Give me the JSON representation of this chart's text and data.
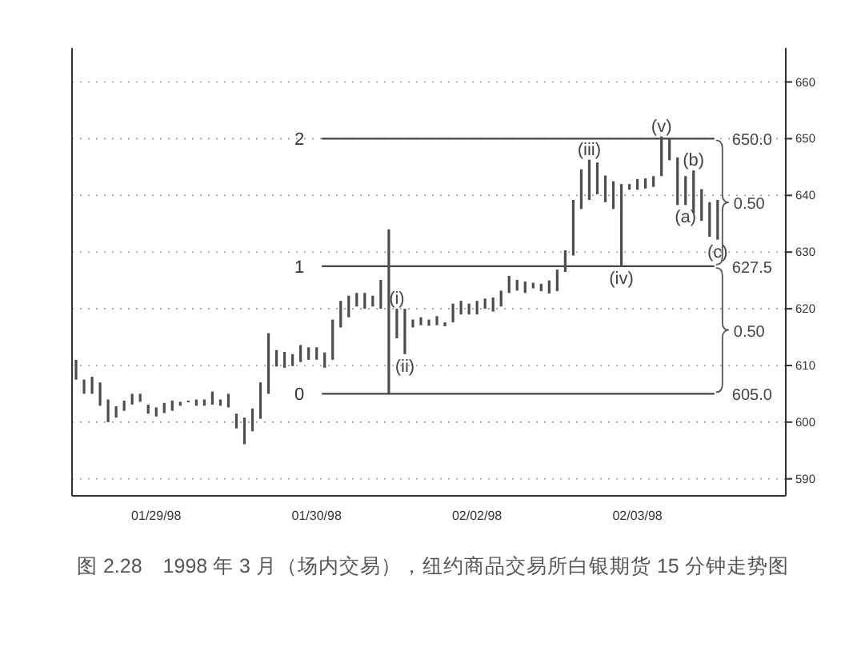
{
  "chart_data": {
    "type": "bar",
    "title": "图 2.28　1998 年 3 月（场内交易），纽约商品交易所白银期货 15 分钟走势图",
    "categories": [
      null,
      null,
      null,
      null,
      null,
      null,
      null,
      null,
      null,
      null,
      "01/29/98",
      null,
      null,
      null,
      null,
      null,
      null,
      null,
      null,
      null,
      null,
      null,
      null,
      null,
      null,
      null,
      null,
      null,
      null,
      null,
      "01/30/98",
      null,
      null,
      null,
      null,
      null,
      null,
      null,
      null,
      null,
      null,
      null,
      null,
      null,
      null,
      null,
      null,
      null,
      null,
      null,
      "02/02/98",
      null,
      null,
      null,
      null,
      null,
      null,
      null,
      null,
      null,
      null,
      null,
      null,
      null,
      null,
      null,
      null,
      null,
      null,
      null,
      "02/03/98",
      null,
      null,
      null,
      null,
      null,
      null,
      null,
      null,
      null,
      null,
      null,
      null,
      null,
      null,
      null,
      null,
      null,
      null
    ],
    "series": [
      {
        "color": "#4d4d4d",
        "base": [
          607.5,
          605.0,
          605.0,
          602.9,
          600.0,
          600.8,
          602.0,
          603.1,
          603.6,
          601.5,
          601.0,
          601.6,
          602.0,
          602.9,
          603.5,
          602.9,
          602.9,
          603.1,
          602.9,
          602.6,
          598.9,
          596.1,
          598.4,
          600.6,
          605.0,
          609.8,
          609.6,
          609.9,
          610.6,
          611.0,
          611.0,
          609.6,
          611.0,
          616.7,
          618.5,
          620.4,
          620.0,
          620.4,
          620.0,
          null,
          614.8,
          612.0,
          616.7,
          617.1,
          617.0,
          617.1,
          616.9,
          617.6,
          619.0,
          619.0,
          619.0,
          620.0,
          619.5,
          620.4,
          622.8,
          623.2,
          622.8,
          623.6,
          623.1,
          622.7,
          623.1,
          626.5,
          629.4,
          637.6,
          639.2,
          640.2,
          638.8,
          637.6,
          627.5,
          641.0,
          641.0,
          641.2,
          641.5,
          643.4,
          646.2,
          638.3,
          638.3,
          636.9,
          635.5,
          632.7,
          632.2,
          null,
          null,
          null,
          null,
          null,
          null,
          null,
          null
        ],
        "values": [
          3.5,
          2.5,
          3.0,
          4.1,
          4.0,
          2.0,
          1.8,
          1.9,
          1.4,
          1.6,
          1.6,
          1.8,
          1.8,
          0.7,
          0.3,
          1.1,
          1.1,
          2.3,
          1.1,
          2.4,
          2.6,
          4.7,
          4.0,
          6.4,
          10.7,
          2.9,
          2.8,
          2.1,
          3.0,
          2.2,
          2.2,
          2.7,
          7.1,
          4.7,
          3.8,
          2.4,
          2.8,
          1.9,
          5.1,
          null,
          5.2,
          8.0,
          1.4,
          1.4,
          1.1,
          1.6,
          0.7,
          3.3,
          2.4,
          1.9,
          2.4,
          1.8,
          2.5,
          2.8,
          3.0,
          1.9,
          2.0,
          1.0,
          1.3,
          2.3,
          3.8,
          3.8,
          9.8,
          7.0,
          7.1,
          5.6,
          4.7,
          4.9,
          14.5,
          1.0,
          1.9,
          1.8,
          1.9,
          7.0,
          3.8,
          8.4,
          5.1,
          7.5,
          5.6,
          6.1,
          7.0,
          null,
          null,
          null,
          null,
          null,
          null,
          null,
          null
        ],
        "value_labels": [
          null,
          null,
          null,
          null,
          null,
          null,
          null,
          null,
          null,
          null,
          null,
          null,
          null,
          null,
          null,
          null,
          null,
          null,
          null,
          null,
          null,
          null,
          null,
          null,
          null,
          null,
          null,
          null,
          null,
          null,
          null,
          null,
          null,
          null,
          null,
          null,
          null,
          null,
          null,
          null,
          "(i)",
          "(ii)",
          null,
          null,
          null,
          null,
          null,
          null,
          null,
          null,
          null,
          null,
          null,
          null,
          null,
          null,
          null,
          null,
          null,
          null,
          null,
          null,
          null,
          null,
          "(iii)",
          null,
          null,
          null,
          "(iv)",
          null,
          null,
          null,
          null,
          "(v)",
          null,
          null,
          "(a)",
          "(b)",
          null,
          null,
          "(c)",
          null,
          null,
          null,
          null,
          null,
          null,
          null,
          null
        ]
      },
      {
        "color": "#4d4d4d",
        "base": [
          null,
          null,
          null,
          null,
          null,
          null,
          null,
          null,
          null,
          null,
          null,
          null,
          null,
          null,
          null,
          null,
          null,
          null,
          null,
          null,
          null,
          null,
          null,
          null,
          null,
          null,
          null,
          null,
          null,
          null,
          null,
          null,
          null,
          null,
          null,
          null,
          null,
          null,
          null,
          605.0,
          null,
          null,
          null,
          null,
          null,
          null,
          null,
          null,
          null,
          null,
          null,
          null,
          null,
          null,
          null,
          null,
          null,
          null,
          null,
          null,
          null,
          null,
          null,
          null,
          null,
          null,
          null,
          null,
          null,
          null,
          null,
          null,
          null,
          null,
          null,
          null,
          null,
          null,
          null,
          null,
          null,
          null,
          null,
          null,
          null,
          null,
          null,
          null,
          null
        ],
        "values": [
          null,
          null,
          null,
          null,
          null,
          null,
          null,
          null,
          null,
          null,
          null,
          null,
          null,
          null,
          null,
          null,
          null,
          null,
          null,
          null,
          null,
          null,
          null,
          null,
          null,
          null,
          null,
          null,
          null,
          null,
          null,
          null,
          null,
          null,
          null,
          null,
          null,
          null,
          null,
          29,
          null,
          null,
          null,
          null,
          null,
          null,
          null,
          null,
          null,
          null,
          null,
          null,
          null,
          null,
          null,
          null,
          null,
          null,
          null,
          null,
          null,
          null,
          null,
          null,
          null,
          null,
          null,
          null,
          null,
          null,
          null,
          null,
          null,
          null,
          null,
          null,
          null,
          null,
          null,
          null,
          null,
          null,
          null,
          null,
          null,
          null,
          null,
          null,
          null
        ]
      }
    ],
    "ylim": [
      587,
      666
    ],
    "yticks": [
      590,
      600,
      610,
      620,
      630,
      640,
      650,
      660
    ],
    "grid": "y",
    "ref_lines": [
      {
        "axis": "y",
        "value": 605.0,
        "label": "605.0",
        "color": "#444444"
      },
      {
        "axis": "y",
        "value": 627.5,
        "label": "627.5",
        "color": "#444444"
      },
      {
        "axis": "y",
        "value": 650.0,
        "label": "650.0",
        "color": "#444444"
      }
    ],
    "annotations": [
      "0",
      "1",
      "2",
      "0.50",
      "0.50"
    ]
  }
}
